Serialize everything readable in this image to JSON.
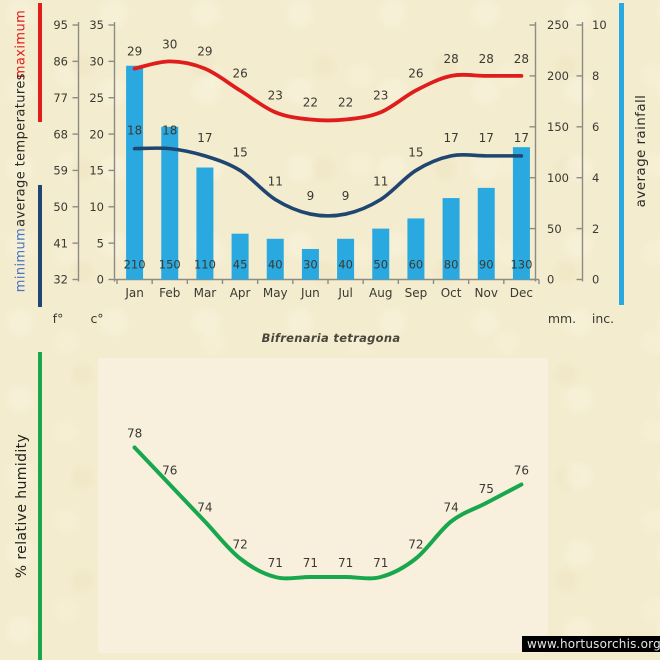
{
  "title": "Bifrenaria tetragona",
  "watermark": "www.hortusorchis.org",
  "top_chart_labels": {
    "legend_max": "maximum",
    "legend_mid": "average temperatures",
    "legend_min": "minimum",
    "legend_rainfall": "average rainfall",
    "unit_f": "f°",
    "unit_c": "c°",
    "unit_mm": "mm.",
    "unit_inc": "inc."
  },
  "humidity_axis_label": "% relative humidity",
  "colors": {
    "background": "#f4ecce",
    "plot_bg": "#f8f0dd",
    "max_line": "#e01d1d",
    "min_line": "#1f4571",
    "rain_bar": "#2aa9e0",
    "humidity_line": "#18a74d",
    "axis": "#8c8c85",
    "text": "#3a3a33",
    "legend_min_text": "#4a74c4",
    "watermark_bg": "#000000",
    "watermark_text": "#e6e6e6"
  },
  "chart_data": [
    {
      "type": "combo-line-bar",
      "title": "",
      "categories": [
        "Jan",
        "Feb",
        "Mar",
        "Apr",
        "May",
        "Jun",
        "Jul",
        "Aug",
        "Sep",
        "Oct",
        "Nov",
        "Dec"
      ],
      "series": [
        {
          "name": "maximum temperature",
          "type": "line",
          "unit": "°C",
          "values": [
            29,
            30,
            29,
            26,
            23,
            22,
            22,
            23,
            26,
            28,
            28,
            28
          ]
        },
        {
          "name": "minimum temperature",
          "type": "line",
          "unit": "°C",
          "values": [
            18,
            18,
            17,
            15,
            11,
            9,
            9,
            11,
            15,
            17,
            17,
            17
          ]
        },
        {
          "name": "average rainfall",
          "type": "bar",
          "unit": "mm",
          "values": [
            210,
            150,
            110,
            45,
            40,
            30,
            40,
            50,
            60,
            80,
            90,
            130
          ]
        }
      ],
      "axes": {
        "fahrenheit_ticks": [
          95,
          86,
          77,
          68,
          59,
          50,
          41,
          32
        ],
        "celsius_ticks": [
          35,
          30,
          25,
          20,
          15,
          10,
          5,
          0
        ],
        "mm_ticks": [
          250,
          200,
          150,
          100,
          50,
          0
        ],
        "inch_ticks": [
          10,
          8,
          6,
          4,
          2,
          0
        ],
        "celsius_range": [
          0,
          35
        ],
        "mm_range": [
          0,
          250
        ]
      },
      "grid": false,
      "legend_position": "rotated-left-and-right"
    },
    {
      "type": "line",
      "title": "Bifrenaria tetragona",
      "categories": [
        "Jan",
        "Feb",
        "Mar",
        "Apr",
        "May",
        "Jun",
        "Jul",
        "Aug",
        "Sep",
        "Oct",
        "Nov",
        "Dec"
      ],
      "series": [
        {
          "name": "% relative humidity",
          "unit": "%",
          "values": [
            78,
            76,
            74,
            72,
            71,
            71,
            71,
            71,
            72,
            74,
            75,
            76
          ]
        }
      ],
      "ylim": [
        70,
        79
      ],
      "grid": false,
      "data_labels": true,
      "legend_position": "rotated-left"
    }
  ]
}
